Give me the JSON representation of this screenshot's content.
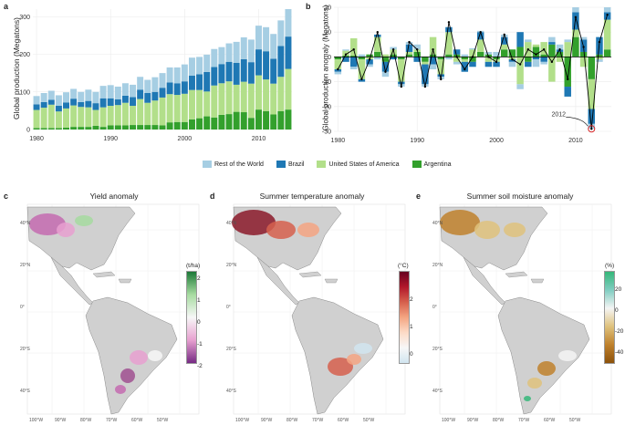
{
  "panels": {
    "a": {
      "letter": "a",
      "ylabel": "Global production (Megatons)"
    },
    "b": {
      "letter": "b",
      "ylabel": "Global production anomaly (Megatons)",
      "annotation": "2012"
    },
    "c": {
      "letter": "c",
      "title": "Yield anomaly",
      "unit": "(t/ha)",
      "cb_ticks": [
        "2",
        "1",
        "0",
        "-1",
        "-2"
      ]
    },
    "d": {
      "letter": "d",
      "title": "Summer temperature anomaly",
      "unit": "(°C)",
      "cb_ticks": [
        "2",
        "1",
        "0"
      ]
    },
    "e": {
      "letter": "e",
      "title": "Summer soil moisture anomaly",
      "unit": "(%)",
      "cb_ticks": [
        "20",
        "0",
        "-20",
        "-40"
      ]
    }
  },
  "legend": [
    {
      "label": "Rest of the World",
      "color": "#a6cee3"
    },
    {
      "label": "Brazil",
      "color": "#1f78b4"
    },
    {
      "label": "United States of America",
      "color": "#b2df8a"
    },
    {
      "label": "Argentina",
      "color": "#33a02c"
    }
  ],
  "map_ticks": {
    "lat": [
      "40°N",
      "20°N",
      "0°",
      "20°S",
      "40°S"
    ],
    "lon_c": [
      "100°W",
      "90°W",
      "80°W",
      "70°W",
      "60°W",
      "50°W"
    ],
    "lon_de": [
      "100°W",
      "90°W",
      "80°W",
      "70°W",
      "60°W",
      "50°W"
    ]
  },
  "chart_data": [
    {
      "type": "bar",
      "stacked": true,
      "x": [
        1980,
        1981,
        1982,
        1983,
        1984,
        1985,
        1986,
        1987,
        1988,
        1989,
        1990,
        1991,
        1992,
        1993,
        1994,
        1995,
        1996,
        1997,
        1998,
        1999,
        2000,
        2001,
        2002,
        2003,
        2004,
        2005,
        2006,
        2007,
        2008,
        2009,
        2010,
        2011,
        2012,
        2013,
        2014
      ],
      "series": [
        {
          "name": "Argentina",
          "values": [
            4,
            4,
            4,
            4,
            5,
            7,
            7,
            7,
            10,
            7,
            11,
            11,
            11,
            12,
            12,
            12,
            12,
            11,
            19,
            20,
            20,
            27,
            30,
            35,
            32,
            39,
            41,
            47,
            46,
            31,
            53,
            49,
            40,
            49,
            53
          ]
        },
        {
          "name": "United States of America",
          "values": [
            48,
            54,
            62,
            44,
            51,
            57,
            53,
            52,
            42,
            52,
            52,
            54,
            60,
            51,
            69,
            59,
            65,
            74,
            75,
            72,
            75,
            78,
            75,
            66,
            85,
            84,
            87,
            72,
            81,
            91,
            91,
            84,
            82,
            91,
            108
          ]
        },
        {
          "name": "Brazil",
          "values": [
            15,
            15,
            13,
            15,
            16,
            18,
            13,
            17,
            18,
            24,
            20,
            15,
            19,
            23,
            25,
            26,
            23,
            26,
            31,
            31,
            33,
            38,
            42,
            52,
            49,
            51,
            52,
            58,
            60,
            57,
            69,
            75,
            66,
            82,
            86
          ]
        },
        {
          "name": "Rest of the World",
          "values": [
            22,
            24,
            24,
            28,
            27,
            26,
            27,
            30,
            30,
            33,
            35,
            34,
            33,
            33,
            34,
            35,
            39,
            39,
            40,
            42,
            45,
            48,
            46,
            46,
            48,
            45,
            49,
            56,
            58,
            60,
            63,
            64,
            66,
            68,
            73
          ]
        }
      ],
      "ylim": [
        0,
        320
      ],
      "yticks": [
        0,
        100,
        200,
        300
      ],
      "xticks": [
        1980,
        1990,
        2000,
        2010
      ]
    },
    {
      "type": "bar",
      "stacked": true,
      "diverging": true,
      "x": [
        1980,
        1981,
        1982,
        1983,
        1984,
        1985,
        1986,
        1987,
        1988,
        1989,
        1990,
        1991,
        1992,
        1993,
        1994,
        1995,
        1996,
        1997,
        1998,
        1999,
        2000,
        2001,
        2002,
        2003,
        2004,
        2005,
        2006,
        2007,
        2008,
        2009,
        2010,
        2011,
        2012,
        2013,
        2014
      ],
      "series": [
        {
          "name": "Argentina",
          "values": [
            -1,
            0.5,
            0.5,
            -1,
            1,
            2,
            -2,
            1,
            -1,
            1,
            2,
            -2,
            1,
            -1,
            1,
            1,
            -1,
            -2,
            2,
            1,
            -1,
            3,
            3,
            4,
            -2,
            4,
            1,
            5,
            2,
            -12,
            8,
            2,
            -9,
            1,
            3
          ]
        },
        {
          "name": "United States of America",
          "values": [
            -4,
            2,
            7,
            -8,
            -1,
            6,
            1,
            2,
            -9,
            1,
            1,
            -1,
            7,
            -6,
            9,
            -2,
            -1,
            3,
            5,
            -2,
            -1,
            2,
            -1,
            -11,
            6,
            1,
            5,
            -10,
            -2,
            6,
            3,
            -4,
            -12,
            -1,
            12
          ]
        },
        {
          "name": "Brazil",
          "values": [
            -1,
            -2,
            -4,
            -1,
            -2,
            1,
            -4,
            -1,
            -1,
            3,
            -2,
            -8,
            -3,
            -1,
            2,
            2,
            -4,
            -2,
            3,
            -2,
            -2,
            3,
            -1,
            6,
            -2,
            -1,
            -2,
            1,
            1,
            -4,
            7,
            5,
            -6,
            7,
            3
          ]
        },
        {
          "name": "Rest of the World",
          "values": [
            -1,
            0.5,
            -1,
            1,
            -1,
            -1,
            -2,
            1,
            -1,
            1,
            2,
            -1,
            -2,
            -1,
            -1,
            -1,
            1,
            0.5,
            0.5,
            1,
            2,
            1,
            -2,
            -2,
            1,
            -3,
            -1,
            2,
            2,
            1,
            2,
            1,
            -2,
            -1,
            2
          ]
        }
      ],
      "total": [
        -5,
        1,
        3,
        -9,
        -1,
        10,
        -6,
        3,
        -12,
        6,
        3,
        -12,
        3,
        -9,
        14,
        0,
        -5,
        0,
        10,
        0,
        -2,
        9,
        -1,
        -3,
        3,
        1,
        3,
        -2,
        3,
        -9,
        16,
        4,
        -29,
        6,
        17
      ],
      "ylim": [
        -30,
        20
      ],
      "yticks": [
        -30,
        -20,
        -10,
        0,
        10,
        20
      ],
      "xticks": [
        1980,
        1990,
        2000,
        2010
      ],
      "annotation": {
        "x": 2012,
        "label": "2012"
      }
    }
  ]
}
